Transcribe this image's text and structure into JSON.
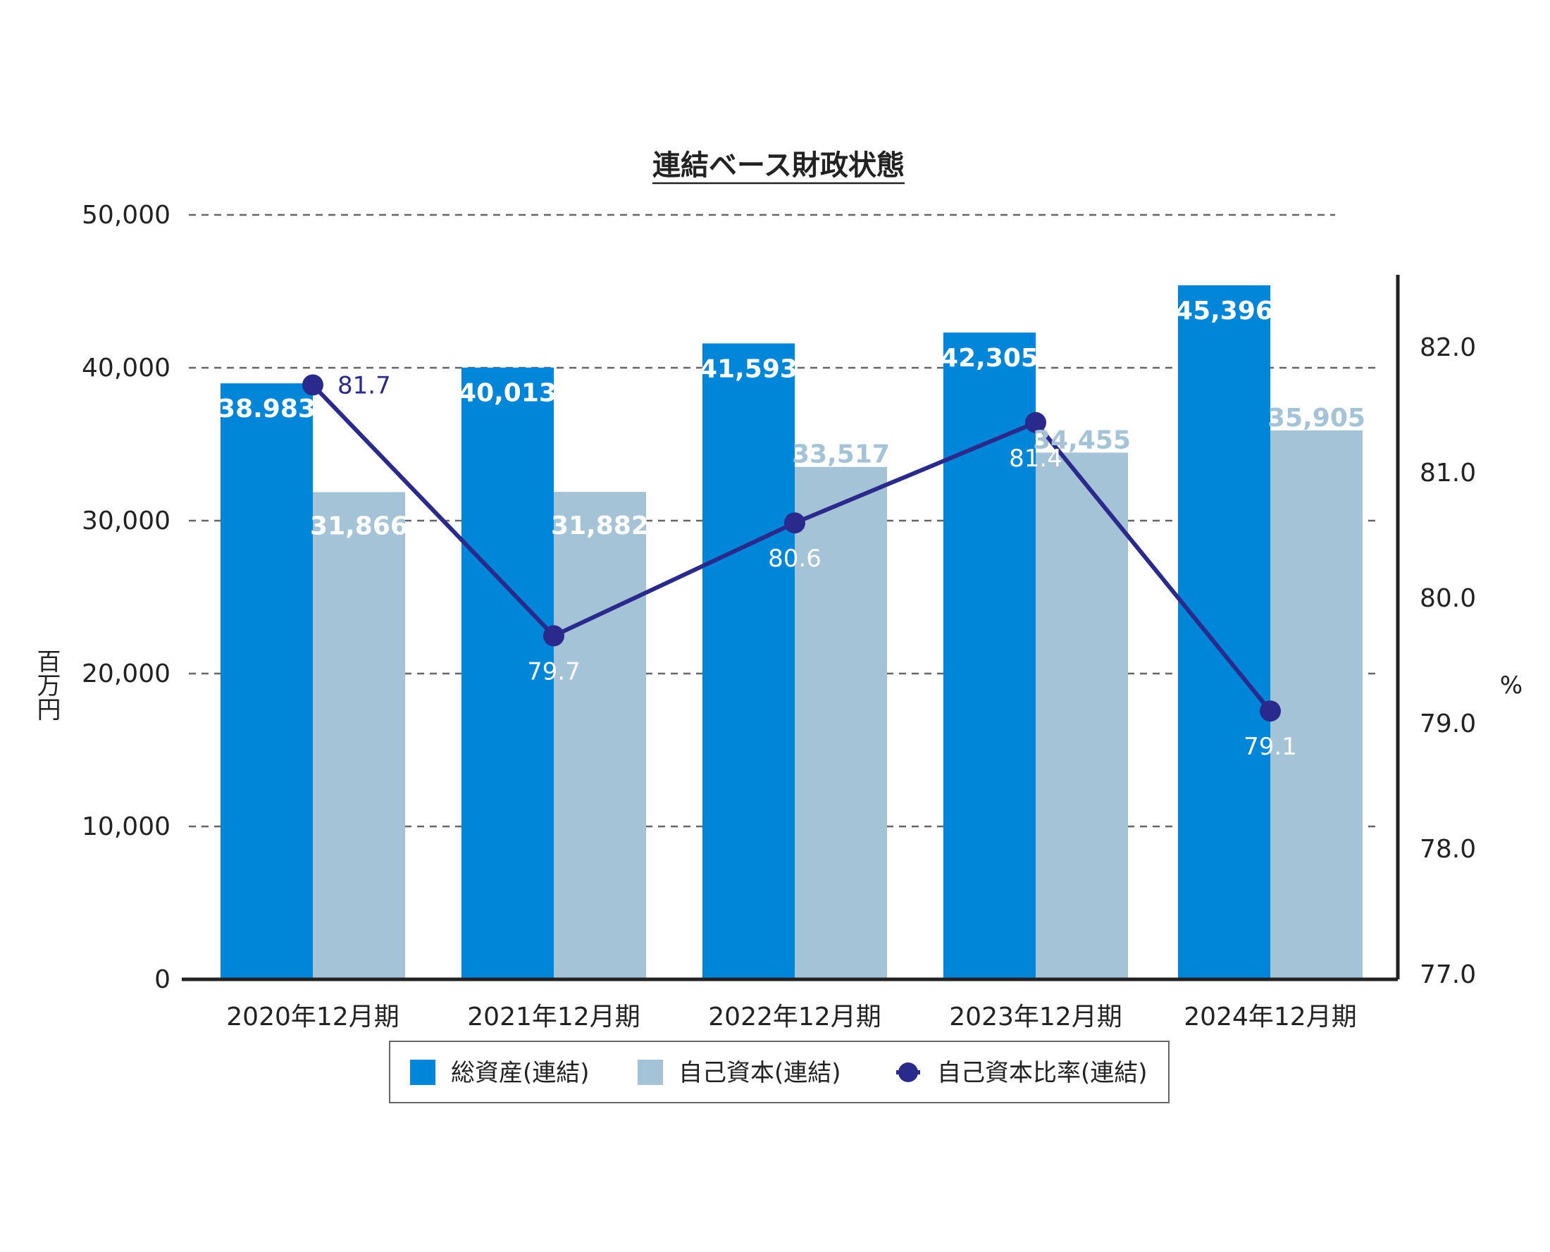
{
  "chart_data": {
    "type": "bar",
    "title": "連結ベース財政状態",
    "ylabel": "百万円",
    "y2label": "%",
    "categories": [
      "2020年12月期",
      "2021年12月期",
      "2022年12月期",
      "2023年12月期",
      "2024年12月期"
    ],
    "ylim": [
      0,
      50000
    ],
    "yticks": [
      "0",
      "10,000",
      "20,000",
      "30,000",
      "40,000",
      "50,000"
    ],
    "y2lim": [
      77.0,
      83.0
    ],
    "y2ticks": [
      "77.0",
      "78.0",
      "79.0",
      "80.0",
      "81.0",
      "82.0"
    ],
    "grid": "dashed horizontal",
    "legend_position": "bottom",
    "series": [
      {
        "name": "総資産(連結)",
        "kind": "bar",
        "axis": "left",
        "color": "#0086d9",
        "values": [
          38983,
          40013,
          41593,
          42305,
          45396
        ],
        "labels": [
          "38.983",
          "40,013",
          "41,593",
          "42,305",
          "45,396"
        ],
        "label_color": "#ffffff"
      },
      {
        "name": "自己資本(連結)",
        "kind": "bar",
        "axis": "left",
        "color": "#a5c3d6",
        "values": [
          31866,
          31882,
          33517,
          34455,
          35905
        ],
        "labels": [
          "31,866",
          "31,882",
          "33,517",
          "34,455",
          "35,905"
        ],
        "label_colors": [
          "#ffffff",
          "#ffffff",
          "#a5c3d6",
          "#a5c3d6",
          "#a5c3d6"
        ]
      },
      {
        "name": "自己資本比率(連結)",
        "kind": "line",
        "axis": "right",
        "color": "#2a2a8c",
        "values": [
          81.7,
          79.7,
          80.6,
          81.4,
          79.1
        ],
        "labels": [
          "81.7",
          "79.7",
          "80.6",
          "81.4",
          "79.1"
        ],
        "label_colors": [
          "#2a2a8c",
          "#ffffff",
          "#ffffff",
          "#ffffff",
          "#ffffff"
        ]
      }
    ]
  }
}
